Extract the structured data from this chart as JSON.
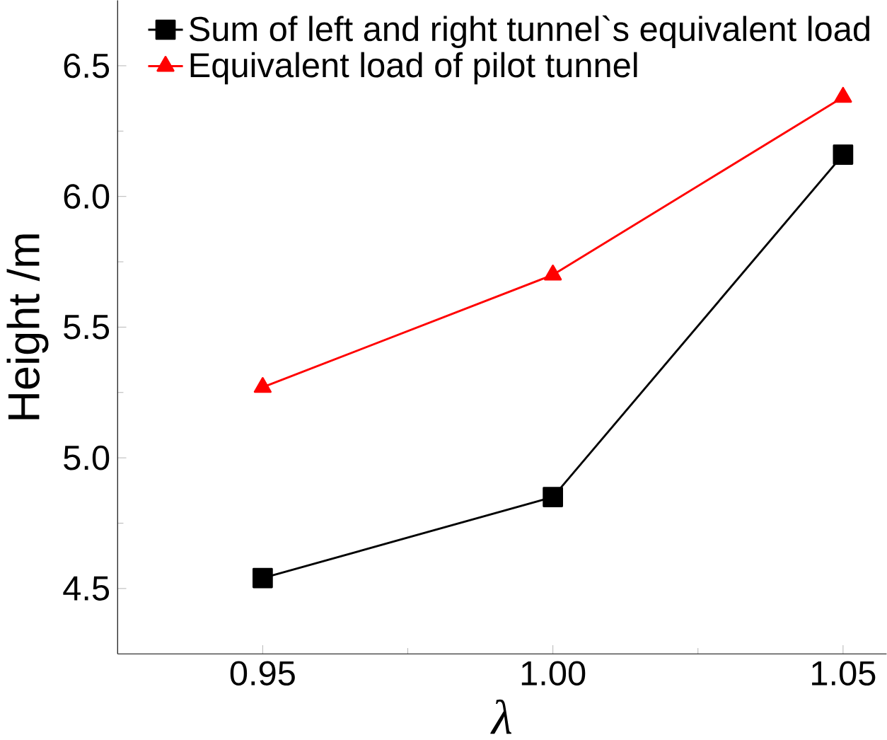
{
  "chart_data": {
    "type": "line",
    "xlabel": "λ",
    "ylabel": "Height /m",
    "x": [
      0.95,
      1.0,
      1.05
    ],
    "series": [
      {
        "name": "Sum of left and right tunnel`s equivalent load",
        "color": "#000000",
        "marker": "square",
        "values": [
          4.54,
          4.85,
          6.16
        ]
      },
      {
        "name": "Equivalent load of pilot tunnel",
        "color": "#ff0000",
        "marker": "triangle",
        "values": [
          5.27,
          5.7,
          6.38
        ]
      }
    ],
    "xlim": [
      0.925,
      1.0575
    ],
    "ylim": [
      4.25,
      6.75
    ],
    "xticks": [
      {
        "value": 0.95,
        "label": "0.95"
      },
      {
        "value": 1.0,
        "label": "1.00"
      },
      {
        "value": 1.05,
        "label": "1.05"
      }
    ],
    "yticks": [
      {
        "value": 4.5,
        "label": "4.5"
      },
      {
        "value": 5.0,
        "label": "5.0"
      },
      {
        "value": 5.5,
        "label": "5.5"
      },
      {
        "value": 6.0,
        "label": "6.0"
      },
      {
        "value": 6.5,
        "label": "6.5"
      }
    ],
    "grid": false,
    "legend": "top left",
    "line_style": "solid"
  }
}
